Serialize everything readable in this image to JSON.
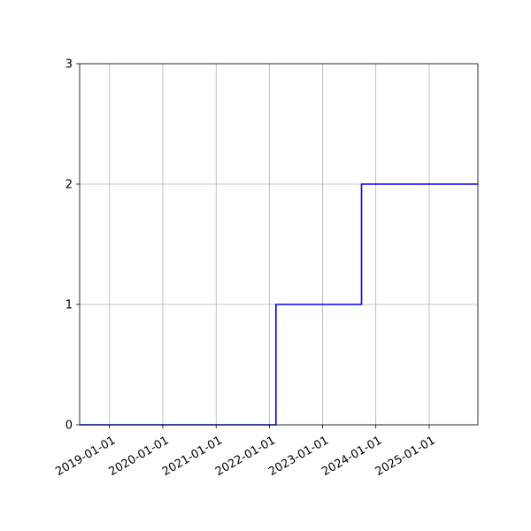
{
  "chart_data": {
    "type": "line",
    "step": "post",
    "title": "",
    "xlabel": "",
    "ylabel": "",
    "x_axis_type": "date",
    "xlim": [
      "2018-06-10",
      "2025-12-01"
    ],
    "ylim": [
      0,
      3
    ],
    "grid": true,
    "legend": "none",
    "x_ticks": [
      "2019-01-01",
      "2020-01-01",
      "2021-01-01",
      "2022-01-01",
      "2023-01-01",
      "2024-01-01",
      "2025-01-01"
    ],
    "y_ticks": [
      "0",
      "1",
      "2",
      "3"
    ],
    "series": [
      {
        "color": "#0000ff",
        "x": [
          "2018-06-10",
          "2022-02-15",
          "2023-09-25",
          "2025-12-01"
        ],
        "y": [
          0,
          1,
          2,
          2
        ]
      }
    ]
  }
}
